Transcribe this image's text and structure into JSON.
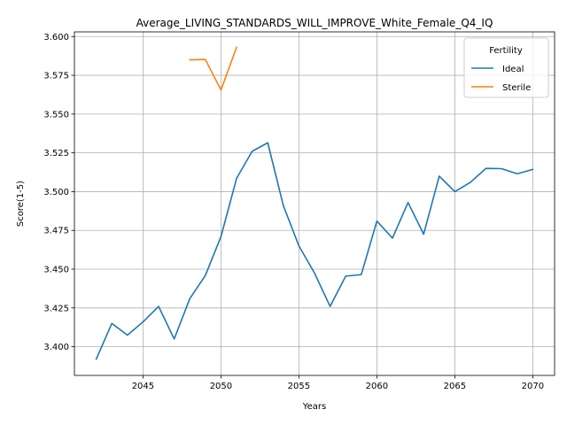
{
  "chart_data": {
    "type": "line",
    "title": "Average_LIVING_STANDARDS_WILL_IMPROVE_White_Female_Q4_IQ",
    "xlabel": "Years",
    "ylabel": "Score(1-5)",
    "xlim": [
      2040.6,
      2071.4
    ],
    "ylim": [
      3.3815,
      3.603
    ],
    "xticks": [
      2045,
      2050,
      2055,
      2060,
      2065,
      2070
    ],
    "yticks": [
      3.4,
      3.425,
      3.45,
      3.475,
      3.5,
      3.525,
      3.55,
      3.575,
      3.6
    ],
    "ytick_labels": [
      "3.400",
      "3.425",
      "3.450",
      "3.475",
      "3.500",
      "3.525",
      "3.550",
      "3.575",
      "3.600"
    ],
    "grid": true,
    "legend": {
      "title": "Fertility",
      "placement": "top-right"
    },
    "series": [
      {
        "name": "Ideal",
        "color": "#1f77b4",
        "x": [
          2042,
          2043,
          2044,
          2045,
          2046,
          2047,
          2048,
          2049,
          2050,
          2051,
          2052,
          2053,
          2054,
          2055,
          2056,
          2057,
          2058,
          2059,
          2060,
          2061,
          2062,
          2063,
          2064,
          2065,
          2066,
          2067,
          2068,
          2069,
          2070
        ],
        "y": [
          3.392,
          3.415,
          3.4075,
          3.416,
          3.426,
          3.405,
          3.431,
          3.446,
          3.471,
          3.5085,
          3.526,
          3.5315,
          3.491,
          3.465,
          3.4475,
          3.426,
          3.4455,
          3.4465,
          3.481,
          3.47,
          3.493,
          3.4725,
          3.51,
          3.5,
          3.506,
          3.515,
          3.5148,
          3.5115,
          3.5143
        ]
      },
      {
        "name": "Sterile",
        "color": "#ff7f0e",
        "x": [
          2048,
          2049,
          2050,
          2051
        ],
        "y": [
          3.585,
          3.5852,
          3.5655,
          3.593
        ]
      }
    ]
  }
}
